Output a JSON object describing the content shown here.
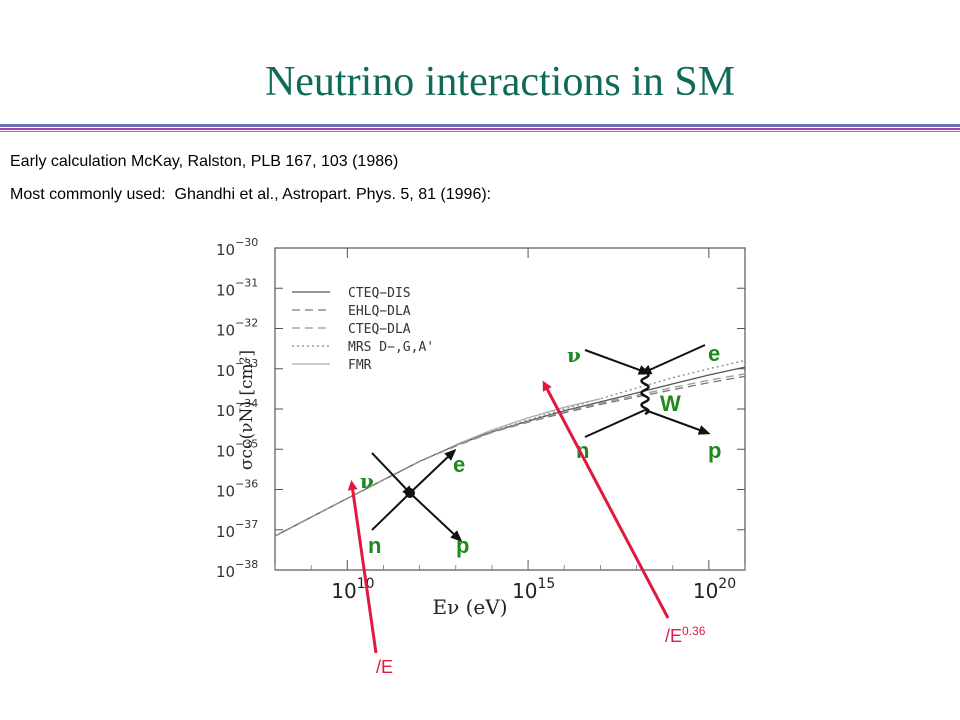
{
  "slide": {
    "title": "Neutrino interactions in SM",
    "lines": [
      "Early calculation McKay, Ralston, PLB 167, 103 (1986)",
      "Most commonly used:  Ghandhi et al., Astropart. Phys. 5, 81 (1996):"
    ]
  },
  "chart_data": {
    "type": "line",
    "ylabel": "σcc(νN) [cm²]",
    "xlabel": "Eν (eV)",
    "x_scale": "log",
    "y_scale": "log",
    "xlim": [
      100000000.0,
      1e+21
    ],
    "ylim": [
      1e-38,
      1e-30
    ],
    "x_ticks": [
      {
        "base": "10",
        "exp": "10",
        "value": 10000000000.0
      },
      {
        "base": "10",
        "exp": "15",
        "value": 1000000000000000.0
      },
      {
        "base": "10",
        "exp": "20",
        "value": 1e+20
      }
    ],
    "y_ticks": [
      {
        "base": "10",
        "exp": "−30",
        "value": 1e-30
      },
      {
        "base": "10",
        "exp": "−31",
        "value": 1e-31
      },
      {
        "base": "10",
        "exp": "−32",
        "value": 1e-32
      },
      {
        "base": "10",
        "exp": "−33",
        "value": 1e-33
      },
      {
        "base": "10",
        "exp": "−34",
        "value": 1e-34
      },
      {
        "base": "10",
        "exp": "−35",
        "value": 1e-35
      },
      {
        "base": "10",
        "exp": "−36",
        "value": 1e-36
      },
      {
        "base": "10",
        "exp": "−37",
        "value": 1e-37
      },
      {
        "base": "10",
        "exp": "−38",
        "value": 1e-38
      }
    ],
    "legend_position": "top-left",
    "series": [
      {
        "name": "CTEQ−DIS",
        "style": "solid",
        "color": "#555555",
        "x": [
          100000000.0,
          10000000000.0,
          1000000000000.0,
          10000000000000.0,
          100000000000000.0,
          1000000000000000.0,
          1e+16,
          1e+17,
          1e+18,
          1e+19,
          1e+20,
          1e+21
        ],
        "y": [
          7e-38,
          6e-37,
          5e-36,
          1.25e-35,
          2.7e-35,
          5e-35,
          9e-35,
          1.5e-34,
          2.5e-34,
          4.2e-34,
          7e-34,
          1.1e-33
        ]
      },
      {
        "name": "EHLQ−DLA",
        "style": "dashed",
        "color": "#777777",
        "x": [
          100000000.0,
          10000000000.0,
          1000000000000.0,
          10000000000000.0,
          100000000000000.0,
          1000000000000000.0,
          1e+16,
          1e+17,
          1e+18,
          1e+19,
          1e+20,
          1e+21
        ],
        "y": [
          7e-38,
          6e-37,
          5e-36,
          1.2e-35,
          2.6e-35,
          4.7e-35,
          8e-35,
          1.3e-34,
          2e-34,
          3e-34,
          4.5e-34,
          6.5e-34
        ]
      },
      {
        "name": "CTEQ−DLA",
        "style": "dashed",
        "color": "#999999",
        "x": [
          100000000.0,
          10000000000.0,
          1000000000000.0,
          10000000000000.0,
          100000000000000.0,
          1000000000000000.0,
          1e+16,
          1e+17,
          1e+18,
          1e+19,
          1e+20,
          1e+21
        ],
        "y": [
          7e-38,
          6e-37,
          5e-36,
          1.2e-35,
          2.6e-35,
          4.8e-35,
          8.5e-35,
          1.4e-34,
          2.2e-34,
          3.4e-34,
          5.2e-34,
          7.5e-34
        ]
      },
      {
        "name": "MRS D−,G,A'",
        "style": "dotted",
        "color": "#888888",
        "x": [
          100000000.0,
          10000000000.0,
          1000000000000.0,
          10000000000000.0,
          100000000000000.0,
          1000000000000000.0,
          1e+16,
          1e+17,
          1e+18,
          1e+19,
          1e+20,
          1e+21
        ],
        "y": [
          7e-38,
          6e-37,
          5e-36,
          1.25e-35,
          2.8e-35,
          5.3e-35,
          1e-34,
          1.8e-34,
          3.3e-34,
          6e-34,
          1e-33,
          1.6e-33
        ]
      },
      {
        "name": "FMR",
        "style": "solid",
        "color": "#aaaaaa",
        "x": [
          10000000000000.0,
          100000000000000.0,
          1000000000000000.0,
          1e+16,
          1e+17
        ],
        "y": [
          1.3e-35,
          3e-35,
          6e-35,
          1.1e-34,
          1.8e-34
        ]
      }
    ]
  },
  "diagrams": {
    "contact": {
      "nu": "ν",
      "e": "e",
      "n": "n",
      "p": "p"
    },
    "exchange": {
      "nu": "ν",
      "e": "e",
      "n": "n",
      "p": "p",
      "boson": "W"
    }
  },
  "annotations": {
    "low": "/E",
    "high_base": "/E",
    "high_exp": "0.36"
  },
  "colors": {
    "title": "#106a5a",
    "arrow": "#e0193f",
    "diagram_label": "#1d8a1d"
  }
}
